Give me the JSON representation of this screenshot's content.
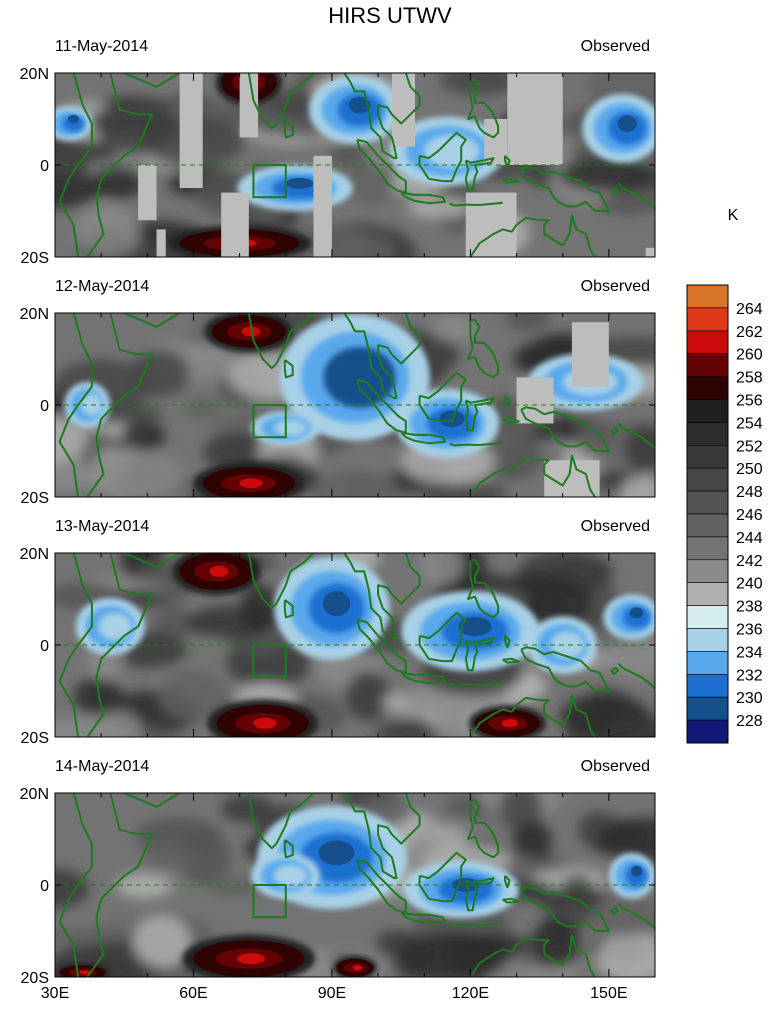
{
  "chart_data": {
    "type": "heatmap",
    "title": "HIRS UTWV",
    "units": "K",
    "x_ticks": [
      "30E",
      "60E",
      "90E",
      "120E",
      "150E"
    ],
    "x_tick_values": [
      30,
      60,
      90,
      120,
      150
    ],
    "x_range": [
      30,
      160
    ],
    "y_ticks": [
      "20N",
      "0",
      "20S"
    ],
    "y_tick_values": [
      20,
      0,
      -20
    ],
    "y_range": [
      -20,
      20
    ],
    "panels": [
      {
        "date": "11-May-2014",
        "label": "Observed",
        "missing": true,
        "red_blobs": [
          [
            70,
            -17,
            13,
            3
          ],
          [
            72,
            18,
            6,
            4
          ]
        ],
        "blue_blobs": [
          [
            82,
            -5,
            10,
            4,
            232
          ],
          [
            95,
            12,
            8,
            6,
            232
          ],
          [
            115,
            3,
            10,
            6,
            236
          ],
          [
            153,
            8,
            7,
            6,
            232
          ],
          [
            33,
            9,
            4,
            3,
            232
          ]
        ]
      },
      {
        "date": "12-May-2014",
        "label": "Observed",
        "missing": true,
        "red_blobs": [
          [
            72,
            16,
            8,
            3.5
          ],
          [
            72,
            -17,
            10,
            3.5
          ]
        ],
        "blue_blobs": [
          [
            95,
            6,
            13,
            11,
            230
          ],
          [
            115,
            -4,
            9,
            6,
            232
          ],
          [
            145,
            5,
            10,
            5,
            236
          ],
          [
            80,
            -5,
            6,
            3,
            236
          ],
          [
            37,
            0,
            4,
            4,
            236
          ]
        ]
      },
      {
        "date": "13-May-2014",
        "label": "Observed",
        "missing": false,
        "red_blobs": [
          [
            65,
            16,
            8,
            4
          ],
          [
            75,
            -17,
            10,
            4
          ],
          [
            128,
            -17,
            7,
            3
          ]
        ],
        "blue_blobs": [
          [
            90,
            8,
            10,
            9,
            232
          ],
          [
            120,
            3,
            12,
            7,
            232
          ],
          [
            42,
            4,
            6,
            5,
            236
          ],
          [
            155,
            6,
            5,
            4,
            232
          ],
          [
            140,
            0,
            6,
            5,
            236
          ]
        ]
      },
      {
        "date": "14-May-2014",
        "label": "Observed",
        "missing": false,
        "red_blobs": [
          [
            72,
            -16,
            12,
            4
          ],
          [
            95,
            -18,
            4,
            2
          ],
          [
            36,
            -19,
            5,
            1.5
          ]
        ],
        "blue_blobs": [
          [
            90,
            6,
            13,
            9,
            232
          ],
          [
            118,
            -1,
            10,
            5,
            232
          ],
          [
            155,
            2,
            4,
            4,
            232
          ],
          [
            80,
            2,
            6,
            4,
            236
          ]
        ]
      }
    ],
    "colorbar": {
      "labels": [
        "264",
        "262",
        "260",
        "258",
        "256",
        "254",
        "252",
        "250",
        "248",
        "246",
        "244",
        "242",
        "240",
        "238",
        "236",
        "234",
        "232",
        "230",
        "228"
      ],
      "colors": [
        "#d8732a",
        "#e0391a",
        "#cc0a0a",
        "#640303",
        "#300303",
        "#202020",
        "#2c2c2c",
        "#383838",
        "#464646",
        "#545454",
        "#626262",
        "#737373",
        "#8a8a8a",
        "#b0b0b0",
        "#d6eef0",
        "#a8d0e6",
        "#5aa8ec",
        "#1e70d0",
        "#16508c",
        "#121878"
      ]
    }
  }
}
